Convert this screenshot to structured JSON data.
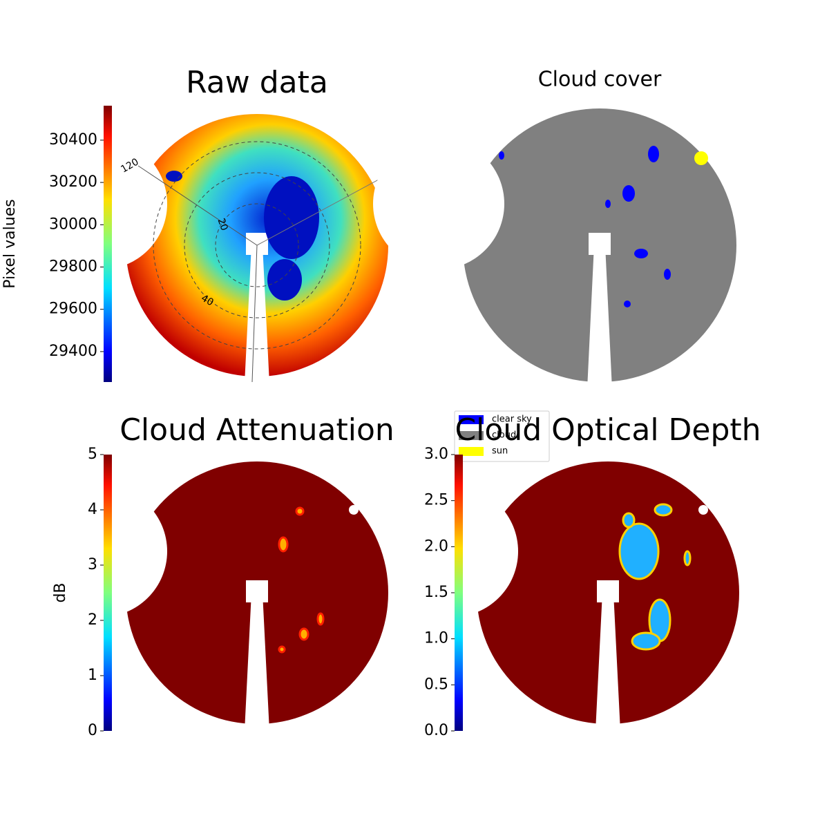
{
  "chart_data": [
    {
      "type": "image",
      "title": "Raw data",
      "colorbar_label": "Pixel values",
      "ylim": [
        29256,
        30563
      ],
      "yticks": [
        29400,
        29600,
        29800,
        30000,
        30200,
        30400
      ],
      "annotations": [
        "120",
        "20",
        "40"
      ]
    },
    {
      "type": "mask",
      "title": "Cloud cover",
      "legend": [
        {
          "label": "clear sky",
          "color": "#0000ff"
        },
        {
          "label": "cloud",
          "color": "#808080"
        },
        {
          "label": "sun",
          "color": "#ffff00"
        }
      ]
    },
    {
      "type": "image",
      "title": "Cloud Attenuation",
      "colorbar_label": "dB",
      "ylim": [
        0,
        5
      ],
      "yticks": [
        0,
        1,
        2,
        3,
        4,
        5
      ]
    },
    {
      "type": "image",
      "title": "Cloud Optical Depth",
      "ylim": [
        0,
        3
      ],
      "yticks": [
        {
          "value": 0,
          "label": "0.0"
        },
        {
          "value": 0.5,
          "label": "0.5"
        },
        {
          "value": 1,
          "label": "1.0"
        },
        {
          "value": 1.5,
          "label": "1.5"
        },
        {
          "value": 2,
          "label": "2.0"
        },
        {
          "value": 2.5,
          "label": "2.5"
        },
        {
          "value": 3,
          "label": "3.0"
        }
      ]
    }
  ]
}
